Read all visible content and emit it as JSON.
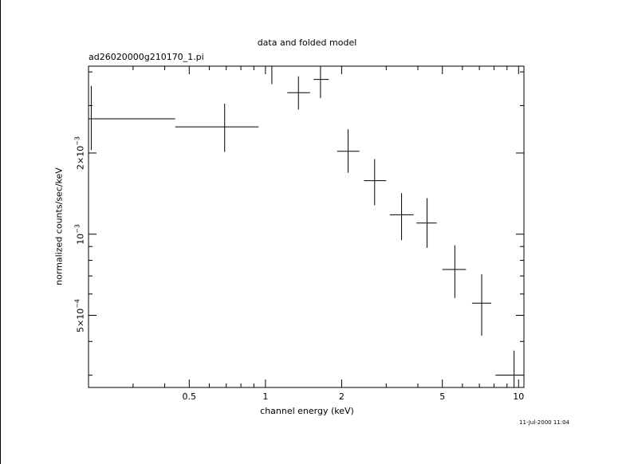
{
  "chart_data": {
    "type": "scatter",
    "title": "data and folded model",
    "subtitle": "ad26020000g210170_1.pi",
    "xlabel": "channel energy (keV)",
    "ylabel": "normalized counts/sec/keV",
    "timestamp": "11-Jul-2000 11:04",
    "x_scale": "log",
    "y_scale": "log",
    "xlim": [
      0.2,
      10.5
    ],
    "ylim": [
      0.00027,
      0.0042
    ],
    "x_ticks": [
      {
        "value": 0.5,
        "label": "0.5"
      },
      {
        "value": 1,
        "label": "1"
      },
      {
        "value": 2,
        "label": "2"
      },
      {
        "value": 5,
        "label": "5"
      },
      {
        "value": 10,
        "label": "10"
      }
    ],
    "y_ticks": [
      {
        "value": 0.0005,
        "mantissa": "5",
        "exponent": "-4"
      },
      {
        "value": 0.001,
        "mantissa": "",
        "exponent": "-3"
      },
      {
        "value": 0.002,
        "mantissa": "2",
        "exponent": "-3"
      }
    ],
    "series": [
      {
        "points": [
          {
            "x": 0.205,
            "xlo": 0.2,
            "xhi": 0.44,
            "y": 0.00268,
            "ylo": 0.00205,
            "yhi": 0.00355
          },
          {
            "x": 0.69,
            "xlo": 0.44,
            "xhi": 0.94,
            "y": 0.0025,
            "ylo": 0.00202,
            "yhi": 0.00305
          },
          {
            "x": 1.06,
            "xlo": 0.98,
            "xhi": 1.16,
            "y": 0.0042,
            "ylo": 0.0036,
            "yhi": 0.0042
          },
          {
            "x": 1.35,
            "xlo": 1.22,
            "xhi": 1.5,
            "y": 0.00335,
            "ylo": 0.0029,
            "yhi": 0.00385
          },
          {
            "x": 1.65,
            "xlo": 1.55,
            "xhi": 1.78,
            "y": 0.00375,
            "ylo": 0.0032,
            "yhi": 0.00432
          },
          {
            "x": 2.12,
            "xlo": 1.92,
            "xhi": 2.35,
            "y": 0.00203,
            "ylo": 0.00169,
            "yhi": 0.00245
          },
          {
            "x": 2.7,
            "xlo": 2.45,
            "xhi": 3.0,
            "y": 0.00158,
            "ylo": 0.00128,
            "yhi": 0.0019
          },
          {
            "x": 3.45,
            "xlo": 3.1,
            "xhi": 3.85,
            "y": 0.00118,
            "ylo": 0.00095,
            "yhi": 0.00142
          },
          {
            "x": 4.35,
            "xlo": 3.95,
            "xhi": 4.75,
            "y": 0.0011,
            "ylo": 0.00089,
            "yhi": 0.00136
          },
          {
            "x": 5.6,
            "xlo": 5.0,
            "xhi": 6.2,
            "y": 0.00074,
            "ylo": 0.00058,
            "yhi": 0.00091
          },
          {
            "x": 7.15,
            "xlo": 6.55,
            "xhi": 7.8,
            "y": 0.000555,
            "ylo": 0.00042,
            "yhi": 0.00071
          },
          {
            "x": 9.6,
            "xlo": 8.1,
            "xhi": 10.5,
            "y": 0.0003,
            "ylo": 0.00027,
            "yhi": 0.00037
          }
        ]
      }
    ],
    "grid": false,
    "legend": "none"
  }
}
